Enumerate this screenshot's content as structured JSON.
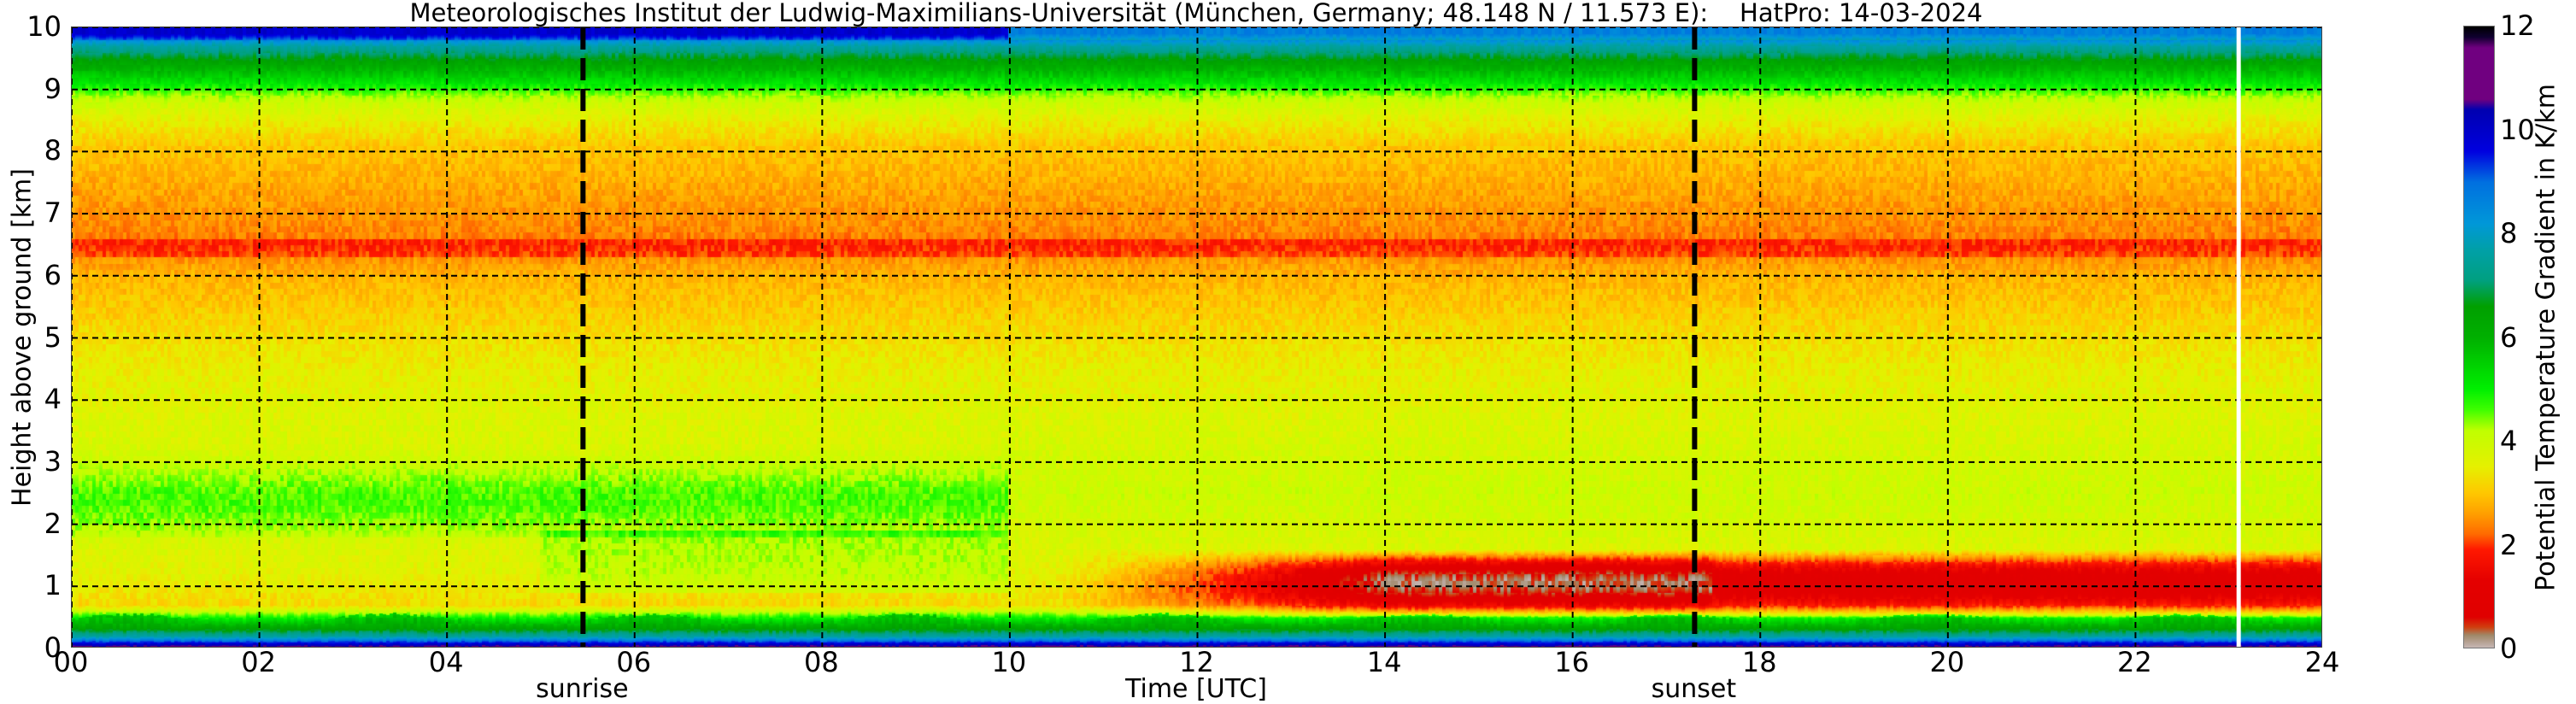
{
  "chart_data": {
    "type": "heatmap",
    "title": "Meteorologisches Institut der Ludwig-Maximilians-Universität (München, Germany; 48.148 N / 11.573 E):    HatPro: 14-03-2024",
    "xlabel": "Time [UTC]",
    "ylabel": "Height above ground [km]",
    "xlim": [
      0,
      24
    ],
    "ylim": [
      0,
      10
    ],
    "x_ticks": [
      "00",
      "02",
      "04",
      "06",
      "08",
      "10",
      "12",
      "14",
      "16",
      "18",
      "20",
      "22",
      "24"
    ],
    "y_ticks": [
      "0",
      "1",
      "2",
      "3",
      "4",
      "5",
      "6",
      "7",
      "8",
      "9",
      "10"
    ],
    "grid": true,
    "colorbar": {
      "label": "Potential Temperature Gradient in K/km",
      "range": [
        0,
        12
      ],
      "ticks": [
        "0",
        "2",
        "4",
        "6",
        "8",
        "10",
        "12"
      ]
    },
    "events": [
      {
        "label": "sunrise",
        "time": 5.45
      },
      {
        "label": "sunset",
        "time": 17.3
      }
    ],
    "data_gap_marker_time": 23.1,
    "typical_profile": {
      "heights_km": [
        0.03,
        0.1,
        0.2,
        0.35,
        0.7,
        1.2,
        2.5,
        4.5,
        6.0,
        6.5,
        7.2,
        8.1,
        8.5,
        8.85,
        9.15,
        9.45,
        9.7,
        9.9
      ],
      "gradient_K_per_km": [
        10.8,
        9.5,
        7.6,
        6.2,
        3.2,
        3.6,
        4.0,
        3.5,
        2.8,
        2.3,
        2.6,
        3.0,
        3.5,
        4.1,
        5.3,
        6.4,
        7.6,
        9.3
      ]
    },
    "afternoon_inversion": {
      "time_range": [
        11,
        24
      ],
      "height_range_km": [
        0.5,
        1.6
      ],
      "min_gradient_K_per_km": 1.0
    }
  }
}
